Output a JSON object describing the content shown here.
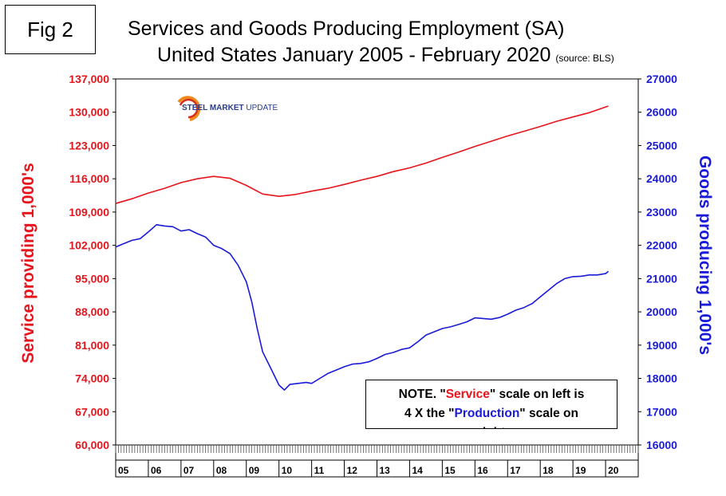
{
  "figure_label": "Fig 2",
  "title_line1": "Services and Goods Producing Employment (SA)",
  "title_line2": "United States January 2005 - February 2020",
  "source": "(source: BLS)",
  "logo": {
    "word1": "STEEL",
    "word2": "MARKET",
    "word3": "UPDATE"
  },
  "note": {
    "line1_prefix": "NOTE. \"",
    "service_word": "Service",
    "line1_suffix": "\" scale on left  is",
    "line2_prefix": "4 X the \"",
    "production_word": "Production",
    "line2_suffix": "\" scale on",
    "line3": "right"
  },
  "colors": {
    "service": "#e8141b",
    "goods": "#1a1ad9",
    "logo_arc_orange": "#f08a1d",
    "logo_arc_red": "#d6311f"
  },
  "chart_data": {
    "type": "line",
    "title": "Services and Goods Producing Employment (SA) United States January 2005 - February 2020",
    "xlabel": "",
    "x_tick_labels": [
      "05",
      "06",
      "07",
      "08",
      "09",
      "10",
      "11",
      "12",
      "13",
      "14",
      "15",
      "16",
      "17",
      "18",
      "19",
      "20"
    ],
    "y_left": {
      "label": "Service providing 1,000's",
      "range": [
        60000,
        137000
      ],
      "ticks": [
        "60,000",
        "67,000",
        "74,000",
        "81,000",
        "88,000",
        "95,000",
        "102,000",
        "109,000",
        "116,000",
        "123,000",
        "130,000",
        "137,000"
      ]
    },
    "y_right": {
      "label": "Goods producing 1,000's",
      "range": [
        16000,
        27000
      ],
      "ticks": [
        "16000",
        "17000",
        "18000",
        "19000",
        "20000",
        "21000",
        "22000",
        "23000",
        "24000",
        "25000",
        "26000",
        "27000"
      ]
    },
    "series": [
      {
        "name": "Service",
        "axis": "left",
        "points": [
          [
            "2005-01",
            110800
          ],
          [
            "2005-07",
            111800
          ],
          [
            "2006-01",
            113000
          ],
          [
            "2006-07",
            114000
          ],
          [
            "2007-01",
            115200
          ],
          [
            "2007-07",
            116000
          ],
          [
            "2008-01",
            116500
          ],
          [
            "2008-07",
            116100
          ],
          [
            "2009-01",
            114600
          ],
          [
            "2009-07",
            112800
          ],
          [
            "2010-01",
            112300
          ],
          [
            "2010-07",
            112700
          ],
          [
            "2011-01",
            113400
          ],
          [
            "2011-07",
            114000
          ],
          [
            "2012-01",
            114800
          ],
          [
            "2012-07",
            115700
          ],
          [
            "2013-01",
            116500
          ],
          [
            "2013-07",
            117500
          ],
          [
            "2014-01",
            118300
          ],
          [
            "2014-07",
            119300
          ],
          [
            "2015-01",
            120500
          ],
          [
            "2015-07",
            121600
          ],
          [
            "2016-01",
            122800
          ],
          [
            "2016-07",
            123900
          ],
          [
            "2017-01",
            125000
          ],
          [
            "2017-07",
            126000
          ],
          [
            "2018-01",
            127000
          ],
          [
            "2018-07",
            128100
          ],
          [
            "2019-01",
            129000
          ],
          [
            "2019-07",
            129900
          ],
          [
            "2020-02",
            131300
          ]
        ]
      },
      {
        "name": "Production",
        "axis": "right",
        "points": [
          [
            "2005-01",
            21950
          ],
          [
            "2005-04",
            22050
          ],
          [
            "2005-07",
            22150
          ],
          [
            "2005-10",
            22200
          ],
          [
            "2006-01",
            22400
          ],
          [
            "2006-04",
            22620
          ],
          [
            "2006-07",
            22580
          ],
          [
            "2006-10",
            22560
          ],
          [
            "2007-01",
            22430
          ],
          [
            "2007-04",
            22470
          ],
          [
            "2007-07",
            22350
          ],
          [
            "2007-10",
            22250
          ],
          [
            "2008-01",
            22000
          ],
          [
            "2008-04",
            21900
          ],
          [
            "2008-07",
            21750
          ],
          [
            "2008-10",
            21400
          ],
          [
            "2009-01",
            20900
          ],
          [
            "2009-03",
            20300
          ],
          [
            "2009-05",
            19500
          ],
          [
            "2009-07",
            18800
          ],
          [
            "2009-10",
            18300
          ],
          [
            "2010-01",
            17800
          ],
          [
            "2010-03",
            17650
          ],
          [
            "2010-05",
            17820
          ],
          [
            "2010-08",
            17850
          ],
          [
            "2010-11",
            17880
          ],
          [
            "2011-01",
            17850
          ],
          [
            "2011-04",
            18000
          ],
          [
            "2011-07",
            18150
          ],
          [
            "2011-10",
            18250
          ],
          [
            "2012-01",
            18350
          ],
          [
            "2012-04",
            18430
          ],
          [
            "2012-07",
            18450
          ],
          [
            "2012-10",
            18500
          ],
          [
            "2013-01",
            18600
          ],
          [
            "2013-04",
            18720
          ],
          [
            "2013-07",
            18780
          ],
          [
            "2013-10",
            18870
          ],
          [
            "2014-01",
            18920
          ],
          [
            "2014-04",
            19100
          ],
          [
            "2014-07",
            19300
          ],
          [
            "2014-10",
            19400
          ],
          [
            "2015-01",
            19500
          ],
          [
            "2015-04",
            19550
          ],
          [
            "2015-07",
            19620
          ],
          [
            "2015-10",
            19700
          ],
          [
            "2016-01",
            19820
          ],
          [
            "2016-04",
            19800
          ],
          [
            "2016-07",
            19780
          ],
          [
            "2016-10",
            19830
          ],
          [
            "2017-01",
            19930
          ],
          [
            "2017-04",
            20050
          ],
          [
            "2017-07",
            20130
          ],
          [
            "2017-10",
            20250
          ],
          [
            "2018-01",
            20450
          ],
          [
            "2018-04",
            20650
          ],
          [
            "2018-07",
            20850
          ],
          [
            "2018-10",
            21000
          ],
          [
            "2019-01",
            21060
          ],
          [
            "2019-04",
            21070
          ],
          [
            "2019-07",
            21110
          ],
          [
            "2019-10",
            21110
          ],
          [
            "2020-01",
            21150
          ],
          [
            "2020-02",
            21220
          ]
        ]
      }
    ],
    "grid": false,
    "legend": "none"
  }
}
